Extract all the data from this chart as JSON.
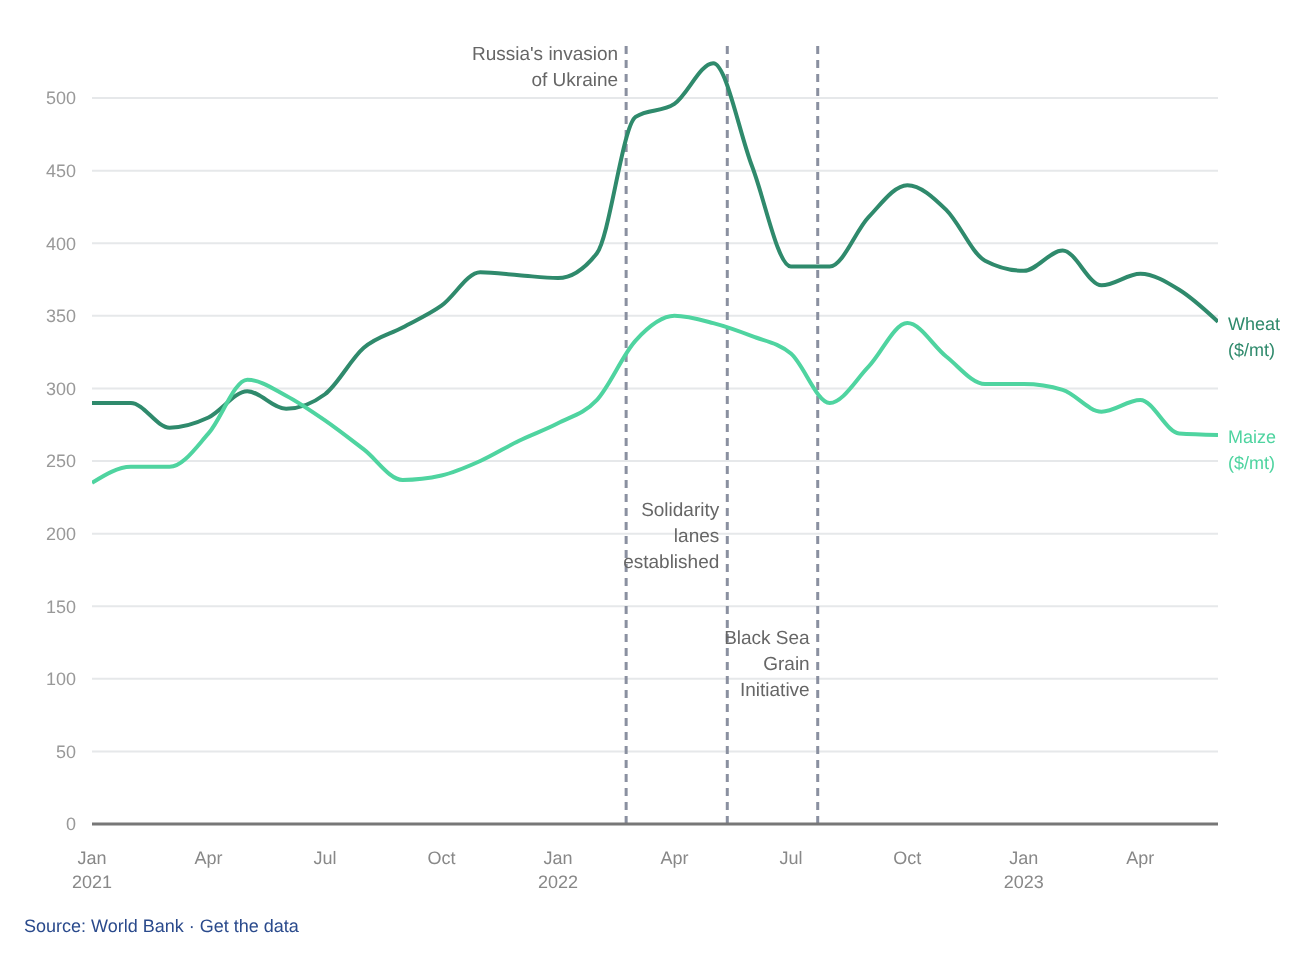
{
  "chart_data": {
    "type": "line",
    "x": [
      "2021-01",
      "2021-02",
      "2021-03",
      "2021-04",
      "2021-05",
      "2021-06",
      "2021-07",
      "2021-08",
      "2021-09",
      "2021-10",
      "2021-11",
      "2021-12",
      "2022-01",
      "2022-02",
      "2022-03",
      "2022-04",
      "2022-05",
      "2022-06",
      "2022-07",
      "2022-08",
      "2022-09",
      "2022-10",
      "2022-11",
      "2022-12",
      "2023-01",
      "2023-02",
      "2023-03",
      "2023-04",
      "2023-05",
      "2023-06"
    ],
    "series": [
      {
        "name": "Wheat ($/mt)",
        "color": "#2f8a6c",
        "values": [
          290,
          290,
          273,
          280,
          298,
          286,
          296,
          328,
          342,
          357,
          380,
          378,
          376,
          393,
          487,
          496,
          524,
          453,
          384,
          384,
          418,
          440,
          423,
          388,
          381,
          395,
          371,
          379,
          368,
          346
        ]
      },
      {
        "name": "Maize ($/mt)",
        "color": "#4fd4a0",
        "values": [
          235,
          246,
          246,
          269,
          306,
          295,
          278,
          258,
          237,
          240,
          250,
          264,
          276,
          292,
          333,
          350,
          345,
          336,
          324,
          290,
          315,
          345,
          322,
          303,
          303,
          299,
          284,
          292,
          269,
          268
        ]
      }
    ],
    "xlim": [
      "2021-01",
      "2023-06"
    ],
    "xticks": [
      {
        "value": "2021-01",
        "label": "Jan 2021"
      },
      {
        "value": "2021-04",
        "label": "Apr"
      },
      {
        "value": "2021-07",
        "label": "Jul"
      },
      {
        "value": "2021-10",
        "label": "Oct"
      },
      {
        "value": "2022-01",
        "label": "Jan 2022"
      },
      {
        "value": "2022-04",
        "label": "Apr"
      },
      {
        "value": "2022-07",
        "label": "Jul"
      },
      {
        "value": "2022-10",
        "label": "Oct"
      },
      {
        "value": "2023-01",
        "label": "Jan 2023"
      },
      {
        "value": "2023-04",
        "label": "Apr"
      }
    ],
    "ylim": [
      0,
      540
    ],
    "yticks": [
      0,
      50,
      100,
      150,
      200,
      250,
      300,
      350,
      400,
      450,
      500
    ],
    "grid": "y",
    "marker": "none",
    "line_style": "solid",
    "ref_lines": [
      {
        "axis": "x",
        "value": "2022-02-24",
        "label": "Russia's invasion of Ukraine",
        "color": "#8a90a0",
        "line_style": "dashed"
      },
      {
        "axis": "x",
        "value": "2022-05-12",
        "label": "Solidarity lanes established",
        "color": "#8a90a0",
        "line_style": "dashed"
      },
      {
        "axis": "x",
        "value": "2022-07-22",
        "label": "Black Sea Grain Initiative",
        "color": "#8a90a0",
        "line_style": "dashed"
      }
    ],
    "annotations": [
      "Source: World Bank · Get the data"
    ]
  }
}
